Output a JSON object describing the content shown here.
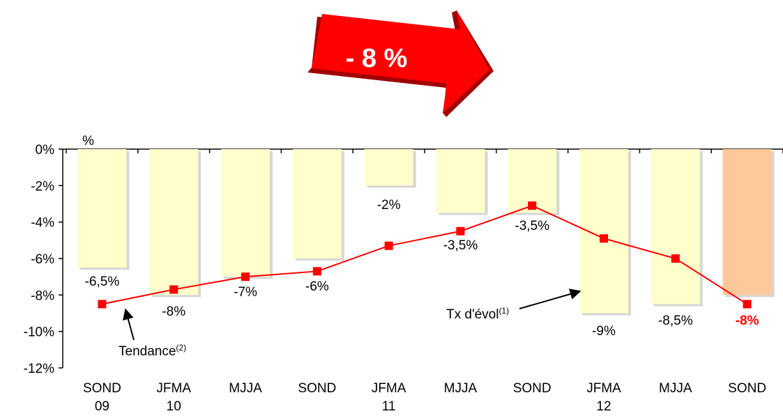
{
  "chart_data": {
    "type": "bar_line",
    "banner": "- 8 %",
    "y_axis_label": "%",
    "categories": [
      [
        "SOND",
        "09"
      ],
      [
        "JFMA",
        "10"
      ],
      [
        "MJJA"
      ],
      [
        "SOND"
      ],
      [
        "JFMA",
        "11"
      ],
      [
        "MJJA"
      ],
      [
        "SOND"
      ],
      [
        "JFMA",
        "12"
      ],
      [
        "MJJA"
      ],
      [
        "SOND"
      ]
    ],
    "series": [
      {
        "name": "Tx d'évol",
        "name_sup": "(1)",
        "type": "bar",
        "color": "#ffffcc",
        "highlight_color": "#fdc99a",
        "values": [
          -6.5,
          -8,
          -7,
          -6,
          -2,
          -3.5,
          -3.5,
          -9,
          -8.5,
          -8
        ],
        "value_labels": [
          "-6,5%",
          "-8%",
          "-7%",
          "-6%",
          "-2%",
          "-3,5%",
          "-3,5%",
          "-9%",
          "-8,5%",
          "-8%"
        ]
      },
      {
        "name": "Tendance",
        "name_sup": "(2)",
        "type": "line",
        "color": "#ff0000",
        "values": [
          -8.5,
          -7.7,
          -7.0,
          -6.7,
          -5.3,
          -4.5,
          -3.1,
          -4.9,
          -6.0,
          -8.5
        ]
      }
    ],
    "ylim": [
      -12,
      0
    ],
    "yticks": [
      {
        "value": 0,
        "label": "0%"
      },
      {
        "value": -2,
        "label": "-2%"
      },
      {
        "value": -4,
        "label": "-4%"
      },
      {
        "value": -6,
        "label": "-6%"
      },
      {
        "value": -8,
        "label": "-8%"
      },
      {
        "value": -10,
        "label": "-10%"
      },
      {
        "value": -12,
        "label": "-12%"
      }
    ]
  }
}
